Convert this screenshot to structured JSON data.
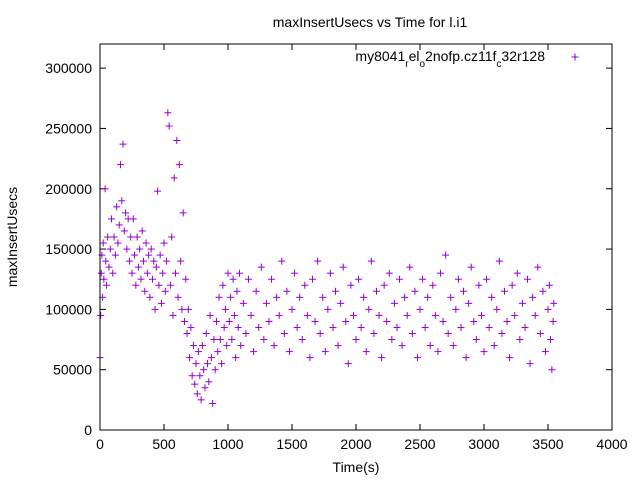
{
  "chart_data": {
    "type": "scatter",
    "title": "maxInsertUsecs vs Time for l.i1",
    "xlabel": "Time(s)",
    "ylabel": "maxInsertUsecs",
    "xlim": [
      0,
      4000
    ],
    "ylim": [
      0,
      320000
    ],
    "x_ticks": [
      "0",
      "500",
      "1000",
      "1500",
      "2000",
      "2500",
      "3000",
      "3500",
      "4000"
    ],
    "y_ticks": [
      "0",
      "50000",
      "100000",
      "150000",
      "200000",
      "250000",
      "300000"
    ],
    "grid": false,
    "legend_position": "top-right",
    "marker": "+",
    "series": [
      {
        "name": "my8041_rel_o2nofp.cz11f_c32r128",
        "legend_parts": [
          {
            "t": "my8041",
            "sub": false
          },
          {
            "t": "r",
            "sub": true
          },
          {
            "t": "el",
            "sub": false
          },
          {
            "t": "o",
            "sub": true
          },
          {
            "t": "2nofp.cz11f",
            "sub": false
          },
          {
            "t": "c",
            "sub": true
          },
          {
            "t": "32r128",
            "sub": false
          }
        ],
        "color": "#9400d3",
        "points": [
          [
            0,
            60000
          ],
          [
            5,
            95000
          ],
          [
            10,
            130000
          ],
          [
            15,
            145000
          ],
          [
            20,
            110000
          ],
          [
            25,
            155000
          ],
          [
            30,
            125000
          ],
          [
            40,
            200000
          ],
          [
            45,
            140000
          ],
          [
            50,
            120000
          ],
          [
            60,
            160000
          ],
          [
            70,
            135000
          ],
          [
            80,
            150000
          ],
          [
            90,
            175000
          ],
          [
            100,
            130000
          ],
          [
            110,
            160000
          ],
          [
            120,
            145000
          ],
          [
            130,
            185000
          ],
          [
            140,
            155000
          ],
          [
            150,
            170000
          ],
          [
            160,
            220000
          ],
          [
            170,
            190000
          ],
          [
            180,
            237000
          ],
          [
            190,
            165000
          ],
          [
            200,
            180000
          ],
          [
            210,
            150000
          ],
          [
            220,
            175000
          ],
          [
            230,
            140000
          ],
          [
            240,
            160000
          ],
          [
            250,
            130000
          ],
          [
            260,
            175000
          ],
          [
            270,
            145000
          ],
          [
            280,
            120000
          ],
          [
            290,
            160000
          ],
          [
            300,
            135000
          ],
          [
            310,
            150000
          ],
          [
            320,
            125000
          ],
          [
            330,
            165000
          ],
          [
            340,
            140000
          ],
          [
            350,
            115000
          ],
          [
            360,
            155000
          ],
          [
            370,
            130000
          ],
          [
            380,
            145000
          ],
          [
            390,
            110000
          ],
          [
            400,
            150000
          ],
          [
            410,
            125000
          ],
          [
            420,
            140000
          ],
          [
            430,
            100000
          ],
          [
            440,
            135000
          ],
          [
            450,
            198000
          ],
          [
            460,
            120000
          ],
          [
            470,
            145000
          ],
          [
            480,
            105000
          ],
          [
            490,
            130000
          ],
          [
            500,
            155000
          ],
          [
            510,
            115000
          ],
          [
            520,
            140000
          ],
          [
            530,
            263000
          ],
          [
            540,
            252000
          ],
          [
            550,
            120000
          ],
          [
            560,
            160000
          ],
          [
            570,
            95000
          ],
          [
            580,
            209000
          ],
          [
            590,
            130000
          ],
          [
            600,
            240000
          ],
          [
            610,
            110000
          ],
          [
            620,
            220000
          ],
          [
            630,
            140000
          ],
          [
            640,
            100000
          ],
          [
            650,
            180000
          ],
          [
            660,
            90000
          ],
          [
            670,
            125000
          ],
          [
            680,
            80000
          ],
          [
            690,
            100000
          ],
          [
            700,
            60000
          ],
          [
            710,
            85000
          ],
          [
            720,
            45000
          ],
          [
            730,
            70000
          ],
          [
            740,
            38000
          ],
          [
            750,
            55000
          ],
          [
            760,
            30000
          ],
          [
            770,
            65000
          ],
          [
            780,
            45000
          ],
          [
            790,
            25000
          ],
          [
            800,
            70000
          ],
          [
            810,
            50000
          ],
          [
            820,
            35000
          ],
          [
            830,
            80000
          ],
          [
            840,
            55000
          ],
          [
            850,
            40000
          ],
          [
            860,
            95000
          ],
          [
            870,
            60000
          ],
          [
            880,
            22000
          ],
          [
            890,
            75000
          ],
          [
            900,
            50000
          ],
          [
            910,
            90000
          ],
          [
            920,
            65000
          ],
          [
            930,
            110000
          ],
          [
            940,
            75000
          ],
          [
            950,
            55000
          ],
          [
            960,
            120000
          ],
          [
            970,
            85000
          ],
          [
            980,
            100000
          ],
          [
            990,
            70000
          ],
          [
            1000,
            130000
          ],
          [
            1010,
            90000
          ],
          [
            1020,
            110000
          ],
          [
            1030,
            75000
          ],
          [
            1040,
            125000
          ],
          [
            1050,
            95000
          ],
          [
            1060,
            60000
          ],
          [
            1070,
            115000
          ],
          [
            1080,
            85000
          ],
          [
            1090,
            130000
          ],
          [
            1100,
            70000
          ],
          [
            1120,
            105000
          ],
          [
            1140,
            80000
          ],
          [
            1160,
            125000
          ],
          [
            1180,
            95000
          ],
          [
            1200,
            65000
          ],
          [
            1220,
            115000
          ],
          [
            1240,
            85000
          ],
          [
            1260,
            135000
          ],
          [
            1280,
            75000
          ],
          [
            1300,
            105000
          ],
          [
            1320,
            90000
          ],
          [
            1340,
            125000
          ],
          [
            1360,
            70000
          ],
          [
            1380,
            110000
          ],
          [
            1400,
            95000
          ],
          [
            1420,
            140000
          ],
          [
            1440,
            80000
          ],
          [
            1460,
            115000
          ],
          [
            1480,
            65000
          ],
          [
            1500,
            100000
          ],
          [
            1520,
            130000
          ],
          [
            1540,
            85000
          ],
          [
            1560,
            110000
          ],
          [
            1580,
            75000
          ],
          [
            1600,
            120000
          ],
          [
            1620,
            95000
          ],
          [
            1640,
            60000
          ],
          [
            1660,
            125000
          ],
          [
            1680,
            90000
          ],
          [
            1700,
            140000
          ],
          [
            1720,
            80000
          ],
          [
            1740,
            110000
          ],
          [
            1760,
            65000
          ],
          [
            1780,
            100000
          ],
          [
            1800,
            130000
          ],
          [
            1820,
            85000
          ],
          [
            1840,
            115000
          ],
          [
            1860,
            70000
          ],
          [
            1880,
            105000
          ],
          [
            1900,
            135000
          ],
          [
            1920,
            90000
          ],
          [
            1940,
            55000
          ],
          [
            1960,
            120000
          ],
          [
            1980,
            95000
          ],
          [
            2000,
            75000
          ],
          [
            2020,
            125000
          ],
          [
            2040,
            85000
          ],
          [
            2060,
            110000
          ],
          [
            2080,
            65000
          ],
          [
            2100,
            100000
          ],
          [
            2120,
            140000
          ],
          [
            2140,
            80000
          ],
          [
            2160,
            115000
          ],
          [
            2180,
            95000
          ],
          [
            2200,
            60000
          ],
          [
            2220,
            120000
          ],
          [
            2240,
            90000
          ],
          [
            2260,
            130000
          ],
          [
            2280,
            75000
          ],
          [
            2300,
            105000
          ],
          [
            2320,
            85000
          ],
          [
            2340,
            125000
          ],
          [
            2360,
            70000
          ],
          [
            2380,
            110000
          ],
          [
            2400,
            95000
          ],
          [
            2420,
            135000
          ],
          [
            2440,
            80000
          ],
          [
            2460,
            115000
          ],
          [
            2480,
            60000
          ],
          [
            2500,
            100000
          ],
          [
            2520,
            125000
          ],
          [
            2540,
            85000
          ],
          [
            2560,
            110000
          ],
          [
            2580,
            70000
          ],
          [
            2600,
            120000
          ],
          [
            2620,
            95000
          ],
          [
            2640,
            65000
          ],
          [
            2660,
            130000
          ],
          [
            2680,
            90000
          ],
          [
            2700,
            145000
          ],
          [
            2720,
            80000
          ],
          [
            2740,
            110000
          ],
          [
            2760,
            70000
          ],
          [
            2780,
            100000
          ],
          [
            2800,
            125000
          ],
          [
            2820,
            85000
          ],
          [
            2840,
            115000
          ],
          [
            2860,
            60000
          ],
          [
            2880,
            105000
          ],
          [
            2900,
            135000
          ],
          [
            2920,
            90000
          ],
          [
            2940,
            75000
          ],
          [
            2960,
            120000
          ],
          [
            2980,
            95000
          ],
          [
            3000,
            65000
          ],
          [
            3020,
            125000
          ],
          [
            3040,
            85000
          ],
          [
            3060,
            110000
          ],
          [
            3080,
            70000
          ],
          [
            3100,
            100000
          ],
          [
            3120,
            140000
          ],
          [
            3140,
            80000
          ],
          [
            3160,
            115000
          ],
          [
            3180,
            90000
          ],
          [
            3200,
            60000
          ],
          [
            3220,
            120000
          ],
          [
            3240,
            95000
          ],
          [
            3260,
            130000
          ],
          [
            3280,
            75000
          ],
          [
            3300,
            105000
          ],
          [
            3320,
            85000
          ],
          [
            3340,
            125000
          ],
          [
            3360,
            55000
          ],
          [
            3380,
            110000
          ],
          [
            3400,
            95000
          ],
          [
            3420,
            135000
          ],
          [
            3440,
            80000
          ],
          [
            3460,
            115000
          ],
          [
            3480,
            65000
          ],
          [
            3500,
            100000
          ],
          [
            3510,
            120000
          ],
          [
            3520,
            75000
          ],
          [
            3530,
            50000
          ],
          [
            3540,
            90000
          ],
          [
            3545,
            105000
          ]
        ]
      }
    ]
  }
}
